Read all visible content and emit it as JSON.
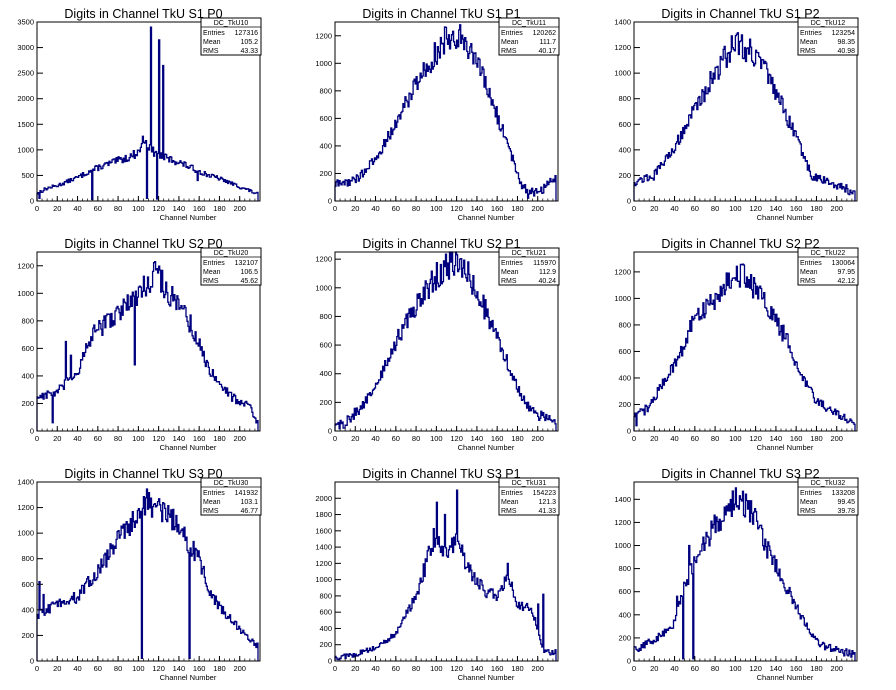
{
  "chart_data": [
    {
      "type": "histogram",
      "title": "Digits in Channel TkU S1 P0",
      "xlabel": "Channel Number",
      "ylabel": "",
      "xlim": [
        0,
        220
      ],
      "ylim": [
        0,
        3500
      ],
      "xticks": [
        0,
        20,
        40,
        60,
        80,
        100,
        120,
        140,
        160,
        180,
        200
      ],
      "yticks": [
        0,
        500,
        1000,
        1500,
        2000,
        2500,
        3000,
        3500
      ],
      "color": "#00007f",
      "stats": {
        "name": "DC_TkU10",
        "entries": "127316",
        "mean": "105.2",
        "rms": "43.33"
      },
      "shape": "flat",
      "anchors": [
        [
          0,
          150
        ],
        [
          10,
          250
        ],
        [
          20,
          300
        ],
        [
          30,
          380
        ],
        [
          40,
          460
        ],
        [
          50,
          560
        ],
        [
          60,
          650
        ],
        [
          70,
          720
        ],
        [
          80,
          790
        ],
        [
          90,
          850
        ],
        [
          100,
          950
        ],
        [
          106,
          1250
        ],
        [
          112,
          1000
        ],
        [
          120,
          900
        ],
        [
          130,
          820
        ],
        [
          140,
          760
        ],
        [
          150,
          670
        ],
        [
          160,
          580
        ],
        [
          170,
          500
        ],
        [
          180,
          440
        ],
        [
          190,
          360
        ],
        [
          200,
          280
        ],
        [
          210,
          200
        ],
        [
          218,
          130
        ]
      ],
      "spikes": [
        [
          2,
          50
        ],
        [
          54,
          30
        ],
        [
          108,
          50
        ],
        [
          112,
          3400
        ],
        [
          120,
          3150
        ],
        [
          124,
          2650
        ],
        [
          118,
          40
        ],
        [
          158,
          400
        ]
      ]
    },
    {
      "type": "histogram",
      "title": "Digits in Channel TkU S1 P1",
      "xlabel": "Channel Number",
      "ylabel": "",
      "xlim": [
        0,
        220
      ],
      "ylim": [
        0,
        1300
      ],
      "xticks": [
        0,
        20,
        40,
        60,
        80,
        100,
        120,
        140,
        160,
        180,
        200
      ],
      "yticks": [
        0,
        200,
        400,
        600,
        800,
        1000,
        1200
      ],
      "color": "#00007f",
      "stats": {
        "name": "DC_TkU11",
        "entries": "120262",
        "mean": "111.7",
        "rms": "40.17"
      },
      "shape": "gauss",
      "anchors": [
        [
          0,
          120
        ],
        [
          20,
          150
        ],
        [
          40,
          300
        ],
        [
          60,
          560
        ],
        [
          80,
          860
        ],
        [
          100,
          1080
        ],
        [
          116,
          1230
        ],
        [
          130,
          1160
        ],
        [
          150,
          820
        ],
        [
          170,
          420
        ],
        [
          185,
          100
        ],
        [
          200,
          60
        ],
        [
          210,
          120
        ],
        [
          218,
          180
        ]
      ],
      "spikes": [
        [
          190,
          20
        ]
      ]
    },
    {
      "type": "histogram",
      "title": "Digits in Channel TkU S1 P2",
      "xlabel": "Channel Number",
      "ylabel": "",
      "xlim": [
        0,
        220
      ],
      "ylim": [
        0,
        1400
      ],
      "xticks": [
        0,
        20,
        40,
        60,
        80,
        100,
        120,
        140,
        160,
        180,
        200
      ],
      "yticks": [
        0,
        200,
        400,
        600,
        800,
        1000,
        1200,
        1400
      ],
      "color": "#00007f",
      "stats": {
        "name": "DC_TkU12",
        "entries": "123254",
        "mean": "98.35",
        "rms": "40.98"
      },
      "shape": "gauss",
      "anchors": [
        [
          0,
          150
        ],
        [
          20,
          200
        ],
        [
          40,
          420
        ],
        [
          60,
          720
        ],
        [
          80,
          1000
        ],
        [
          100,
          1250
        ],
        [
          120,
          1150
        ],
        [
          140,
          850
        ],
        [
          160,
          500
        ],
        [
          175,
          200
        ],
        [
          190,
          150
        ],
        [
          210,
          100
        ],
        [
          216,
          60
        ]
      ],
      "spikes": []
    },
    {
      "type": "histogram",
      "title": "Digits in Channel TkU S2 P0",
      "xlabel": "Channel Number",
      "ylabel": "",
      "xlim": [
        0,
        220
      ],
      "ylim": [
        0,
        1300
      ],
      "xticks": [
        0,
        20,
        40,
        60,
        80,
        100,
        120,
        140,
        160,
        180,
        200
      ],
      "yticks": [
        0,
        200,
        400,
        600,
        800,
        1000,
        1200
      ],
      "color": "#00007f",
      "stats": {
        "name": "DC_TkU20",
        "entries": "132107",
        "mean": "106.5",
        "rms": "45.62"
      },
      "shape": "gauss",
      "anchors": [
        [
          0,
          250
        ],
        [
          20,
          280
        ],
        [
          40,
          430
        ],
        [
          55,
          700
        ],
        [
          70,
          800
        ],
        [
          90,
          920
        ],
        [
          110,
          1080
        ],
        [
          116,
          1180
        ],
        [
          130,
          1000
        ],
        [
          150,
          800
        ],
        [
          170,
          450
        ],
        [
          190,
          260
        ],
        [
          210,
          180
        ],
        [
          218,
          60
        ]
      ],
      "spikes": [
        [
          15,
          60
        ],
        [
          28,
          650
        ],
        [
          33,
          550
        ],
        [
          96,
          480
        ],
        [
          116,
          1230
        ]
      ]
    },
    {
      "type": "histogram",
      "title": "Digits in Channel TkU S2 P1",
      "xlabel": "Channel Number",
      "ylabel": "",
      "xlim": [
        0,
        220
      ],
      "ylim": [
        0,
        1250
      ],
      "xticks": [
        0,
        20,
        40,
        60,
        80,
        100,
        120,
        140,
        160,
        180,
        200
      ],
      "yticks": [
        0,
        200,
        400,
        600,
        800,
        1000,
        1200
      ],
      "color": "#00007f",
      "stats": {
        "name": "DC_TkU21",
        "entries": "115970",
        "mean": "112.9",
        "rms": "40.24"
      },
      "shape": "gauss",
      "anchors": [
        [
          0,
          40
        ],
        [
          10,
          60
        ],
        [
          25,
          160
        ],
        [
          40,
          300
        ],
        [
          60,
          620
        ],
        [
          80,
          880
        ],
        [
          100,
          1080
        ],
        [
          116,
          1180
        ],
        [
          130,
          1120
        ],
        [
          150,
          820
        ],
        [
          170,
          480
        ],
        [
          185,
          220
        ],
        [
          200,
          110
        ],
        [
          218,
          80
        ]
      ],
      "spikes": [
        [
          8,
          20
        ],
        [
          9,
          20
        ]
      ]
    },
    {
      "type": "histogram",
      "title": "Digits in Channel TkU S2 P2",
      "xlabel": "Channel Number",
      "ylabel": "",
      "xlim": [
        0,
        220
      ],
      "ylim": [
        0,
        1350
      ],
      "xticks": [
        0,
        20,
        40,
        60,
        80,
        100,
        120,
        140,
        160,
        180,
        200
      ],
      "yticks": [
        0,
        200,
        400,
        600,
        800,
        1000,
        1200
      ],
      "color": "#00007f",
      "stats": {
        "name": "DC_TkU22",
        "entries": "130064",
        "mean": "97.95",
        "rms": "42.12"
      },
      "shape": "gauss",
      "anchors": [
        [
          0,
          100
        ],
        [
          15,
          180
        ],
        [
          30,
          380
        ],
        [
          45,
          570
        ],
        [
          60,
          850
        ],
        [
          80,
          1000
        ],
        [
          100,
          1200
        ],
        [
          112,
          1150
        ],
        [
          130,
          950
        ],
        [
          150,
          700
        ],
        [
          165,
          420
        ],
        [
          180,
          230
        ],
        [
          200,
          130
        ],
        [
          214,
          70
        ]
      ],
      "spikes": [
        [
          2,
          40
        ]
      ]
    },
    {
      "type": "histogram",
      "title": "Digits in Channel TkU S3 P0",
      "xlabel": "Channel Number",
      "ylabel": "",
      "xlim": [
        0,
        220
      ],
      "ylim": [
        0,
        1400
      ],
      "xticks": [
        0,
        20,
        40,
        60,
        80,
        100,
        120,
        140,
        160,
        180,
        200
      ],
      "yticks": [
        0,
        200,
        400,
        600,
        800,
        1000,
        1200,
        1400
      ],
      "color": "#00007f",
      "stats": {
        "name": "DC_TkU30",
        "entries": "141932",
        "mean": "103.1",
        "rms": "46.77"
      },
      "shape": "gauss",
      "anchors": [
        [
          0,
          350
        ],
        [
          10,
          400
        ],
        [
          20,
          450
        ],
        [
          40,
          500
        ],
        [
          60,
          700
        ],
        [
          80,
          950
        ],
        [
          100,
          1150
        ],
        [
          106,
          1250
        ],
        [
          120,
          1200
        ],
        [
          140,
          1050
        ],
        [
          160,
          800
        ],
        [
          170,
          550
        ],
        [
          180,
          420
        ],
        [
          200,
          250
        ],
        [
          210,
          190
        ],
        [
          218,
          100
        ]
      ],
      "spikes": [
        [
          2,
          620
        ],
        [
          6,
          520
        ],
        [
          103,
          20
        ],
        [
          150,
          20
        ]
      ]
    },
    {
      "type": "histogram",
      "title": "Digits in Channel TkU S3 P1",
      "xlabel": "Channel Number",
      "ylabel": "",
      "xlim": [
        0,
        220
      ],
      "ylim": [
        0,
        2200
      ],
      "xticks": [
        0,
        20,
        40,
        60,
        80,
        100,
        120,
        140,
        160,
        180,
        200
      ],
      "yticks": [
        0,
        200,
        400,
        600,
        800,
        1000,
        1200,
        1400,
        1600,
        1800,
        2000
      ],
      "color": "#00007f",
      "stats": {
        "name": "DC_TkU31",
        "entries": "154223",
        "mean": "121.3",
        "rms": "41.33"
      },
      "shape": "gauss",
      "anchors": [
        [
          0,
          40
        ],
        [
          20,
          80
        ],
        [
          40,
          160
        ],
        [
          60,
          330
        ],
        [
          80,
          800
        ],
        [
          100,
          1600
        ],
        [
          110,
          1300
        ],
        [
          120,
          1500
        ],
        [
          135,
          1050
        ],
        [
          150,
          850
        ],
        [
          160,
          800
        ],
        [
          170,
          1050
        ],
        [
          180,
          700
        ],
        [
          195,
          620
        ],
        [
          205,
          150
        ],
        [
          212,
          100
        ],
        [
          218,
          120
        ]
      ],
      "spikes": [
        [
          100,
          1950
        ],
        [
          108,
          1800
        ],
        [
          120,
          2100
        ],
        [
          170,
          1200
        ],
        [
          200,
          700
        ],
        [
          205,
          820
        ]
      ]
    },
    {
      "type": "histogram",
      "title": "Digits in Channel TkU S3 P2",
      "xlabel": "Channel Number",
      "ylabel": "",
      "xlim": [
        0,
        220
      ],
      "ylim": [
        0,
        1550
      ],
      "xticks": [
        0,
        20,
        40,
        60,
        80,
        100,
        120,
        140,
        160,
        180,
        200
      ],
      "yticks": [
        0,
        200,
        400,
        600,
        800,
        1000,
        1200,
        1400
      ],
      "color": "#00007f",
      "stats": {
        "name": "DC_TkU32",
        "entries": "133208",
        "mean": "99.45",
        "rms": "39.78"
      },
      "shape": "gauss",
      "anchors": [
        [
          0,
          100
        ],
        [
          20,
          180
        ],
        [
          38,
          300
        ],
        [
          50,
          650
        ],
        [
          62,
          900
        ],
        [
          80,
          1180
        ],
        [
          100,
          1400
        ],
        [
          115,
          1300
        ],
        [
          130,
          1000
        ],
        [
          150,
          650
        ],
        [
          170,
          300
        ],
        [
          185,
          140
        ],
        [
          200,
          100
        ],
        [
          214,
          60
        ]
      ],
      "spikes": [
        [
          42,
          560
        ],
        [
          48,
          20
        ],
        [
          58,
          20
        ],
        [
          54,
          1000
        ]
      ]
    }
  ],
  "stats_labels": {
    "entries": "Entries",
    "mean": "Mean",
    "rms": "RMS"
  }
}
